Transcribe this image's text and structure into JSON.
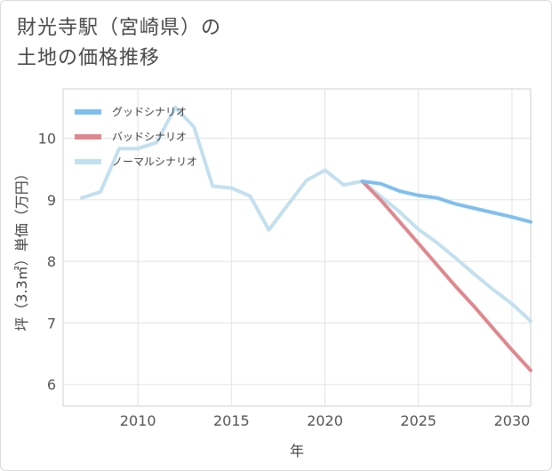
{
  "title": {
    "line1": "財光寺駅（宮崎県）の",
    "line2": "土地の価格推移"
  },
  "chart_data": {
    "type": "line",
    "title": "財光寺駅（宮崎県）の土地の価格推移",
    "xlabel": "年",
    "ylabel": "坪（3.3㎡）単価（万円）",
    "xlim": [
      2006,
      2031
    ],
    "ylim": [
      5.65,
      10.8
    ],
    "xticks": [
      2010,
      2015,
      2020,
      2025,
      2030
    ],
    "yticks": [
      6,
      7,
      8,
      9,
      10
    ],
    "grid": true,
    "legend_position": "top-left",
    "series": [
      {
        "name": "グッドシナリオ",
        "color": "#7fbfef",
        "x": [
          2022,
          2023,
          2024,
          2025,
          2026,
          2027,
          2028,
          2029,
          2030,
          2031
        ],
        "y": [
          9.3,
          9.26,
          9.14,
          9.07,
          9.03,
          8.93,
          8.86,
          8.79,
          8.72,
          8.64
        ]
      },
      {
        "name": "バッドシナリオ",
        "color": "#e0888f",
        "x": [
          2022,
          2023,
          2024,
          2025,
          2026,
          2027,
          2028,
          2029,
          2030,
          2031
        ],
        "y": [
          9.3,
          8.99,
          8.64,
          8.29,
          7.94,
          7.59,
          7.26,
          6.91,
          6.56,
          6.23
        ]
      },
      {
        "name": "ノーマルシナリオ",
        "color": "#c3e0ef",
        "x": [
          2007,
          2008,
          2009,
          2010,
          2011,
          2012,
          2013,
          2014,
          2015,
          2016,
          2017,
          2018,
          2019,
          2020,
          2021,
          2022,
          2023,
          2024,
          2025,
          2026,
          2027,
          2028,
          2029,
          2030,
          2031
        ],
        "y": [
          9.03,
          9.13,
          9.83,
          9.83,
          9.93,
          10.5,
          10.18,
          9.22,
          9.19,
          9.06,
          8.51,
          8.91,
          9.31,
          9.48,
          9.24,
          9.3,
          9.05,
          8.8,
          8.52,
          8.3,
          8.05,
          7.79,
          7.54,
          7.31,
          7.03
        ]
      }
    ]
  }
}
